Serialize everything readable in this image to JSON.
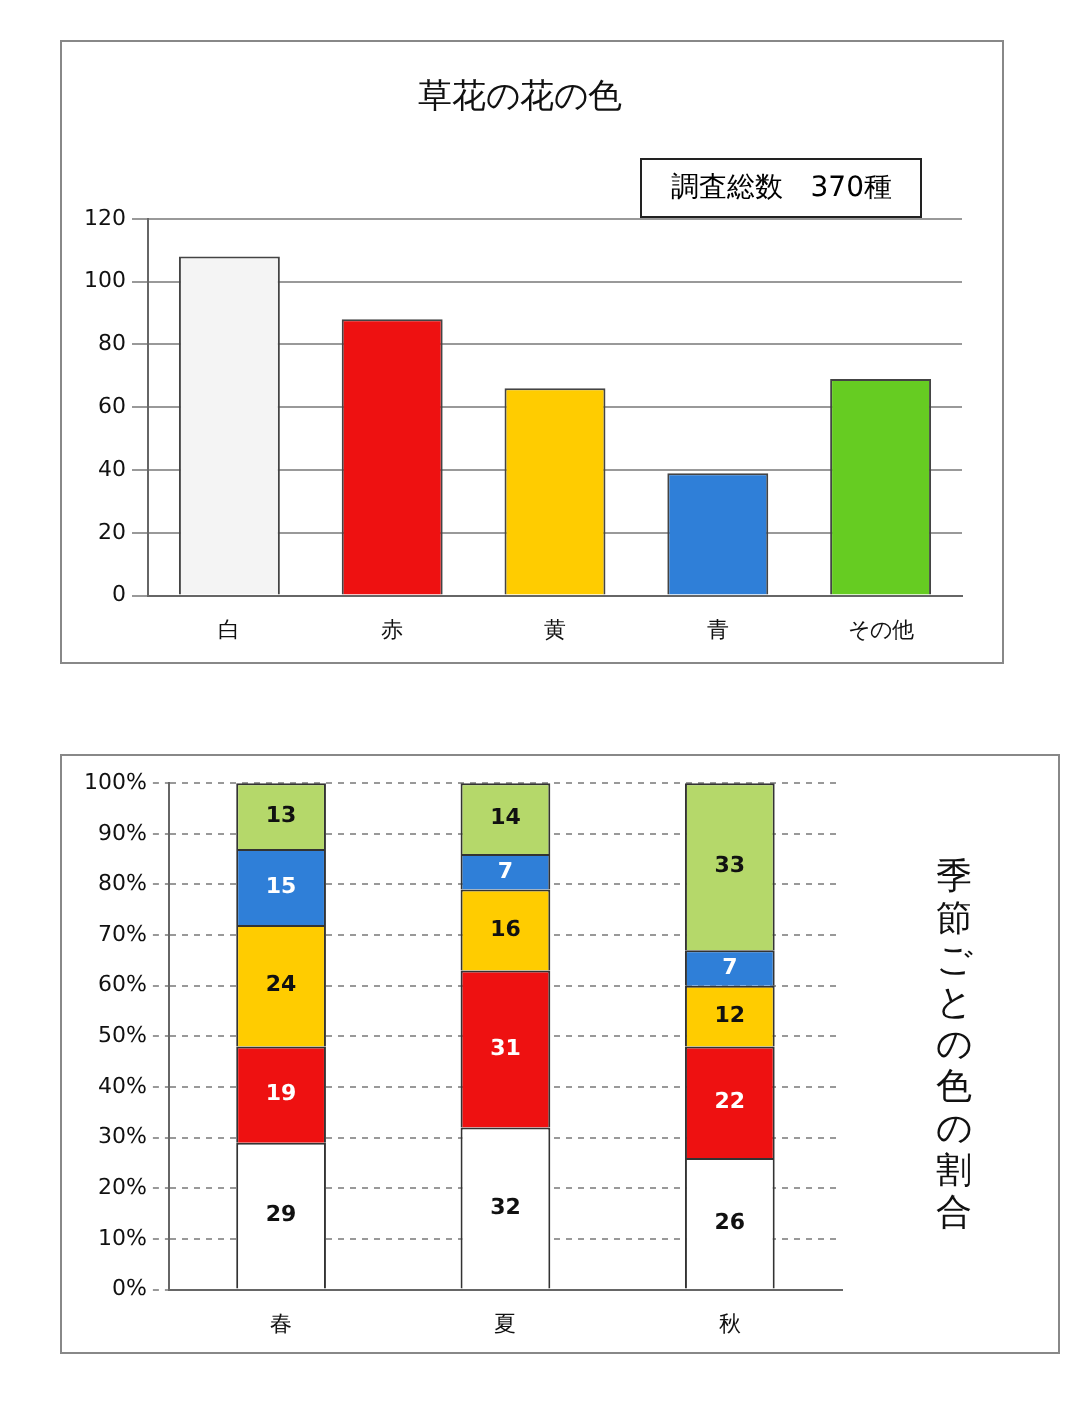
{
  "chart_data": [
    {
      "type": "bar",
      "title": "草花の花の色",
      "categories": [
        "白",
        "赤",
        "黄",
        "青",
        "その他"
      ],
      "values": [
        108,
        88,
        66,
        39,
        69
      ],
      "colors": [
        "#f4f4f4",
        "#ee1111",
        "#ffcc00",
        "#2f7fd8",
        "#66cc22"
      ],
      "ylim": [
        0,
        120
      ],
      "yticks": [
        0,
        20,
        40,
        60,
        80,
        100,
        120
      ],
      "grid": "y",
      "annotations": [
        "調査総数　370種"
      ]
    },
    {
      "type": "bar",
      "title": "季節ごとの色の割合",
      "categories": [
        "春",
        "夏",
        "秋"
      ],
      "stacked": true,
      "series": [
        {
          "color": "#ffffff",
          "values": [
            29,
            32,
            26
          ]
        },
        {
          "color": "#ee1111",
          "values": [
            19,
            31,
            22
          ]
        },
        {
          "color": "#ffcc00",
          "values": [
            24,
            16,
            12
          ]
        },
        {
          "color": "#2f7fd8",
          "values": [
            15,
            7,
            7
          ]
        },
        {
          "color": "#b5d86a",
          "values": [
            13,
            14,
            33
          ]
        }
      ],
      "ylim": [
        0,
        100
      ],
      "yticks": [
        {
          "value": 0,
          "label": "0%"
        },
        {
          "value": 10,
          "label": "10%"
        },
        {
          "value": 20,
          "label": "20%"
        },
        {
          "value": 30,
          "label": "30%"
        },
        {
          "value": 40,
          "label": "40%"
        },
        {
          "value": 50,
          "label": "50%"
        },
        {
          "value": 60,
          "label": "60%"
        },
        {
          "value": 70,
          "label": "70%"
        },
        {
          "value": 80,
          "label": "80%"
        },
        {
          "value": 90,
          "label": "90%"
        },
        {
          "value": 100,
          "label": "100%"
        }
      ],
      "grid": "y",
      "data_labels": true
    }
  ]
}
